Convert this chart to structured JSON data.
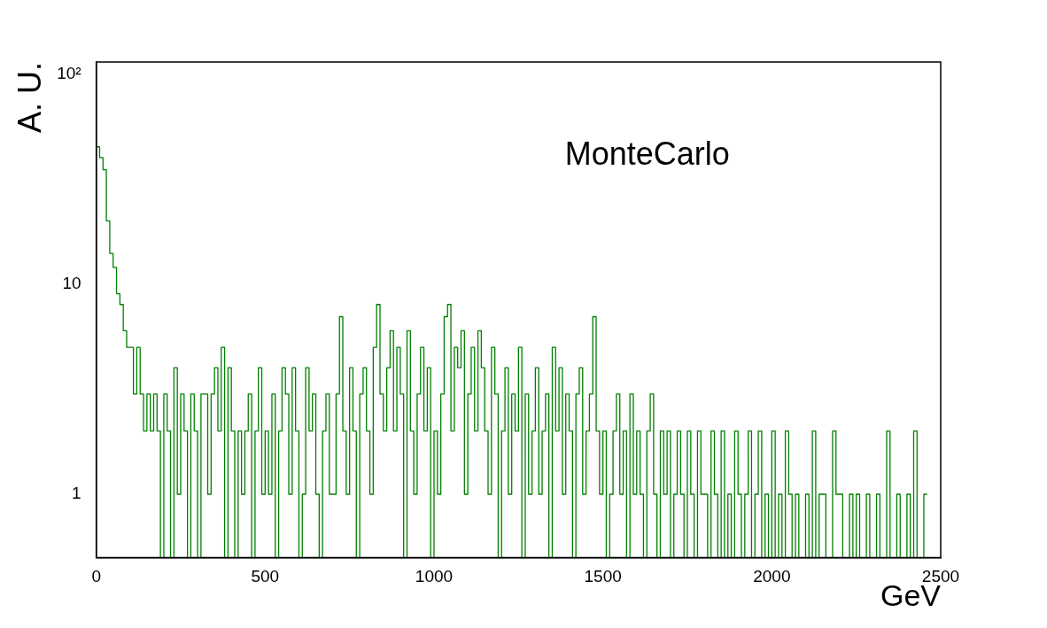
{
  "chart_data": {
    "type": "histogram",
    "xlabel": "GeV",
    "ylabel": "A. U.",
    "annotations": [
      "MonteCarlo"
    ],
    "color": "#007f00",
    "log": true,
    "grid": false,
    "legend": false,
    "xlim": [
      0,
      2500
    ],
    "xticks": [
      0,
      500,
      1000,
      1500,
      2000,
      2500
    ],
    "ylim": [
      0.5,
      114
    ],
    "yticks": [
      1,
      10,
      {
        "value": 100,
        "label": "10²"
      }
    ],
    "bins": [
      0,
      10,
      20,
      30,
      40,
      50,
      60,
      70,
      80,
      90,
      100,
      110,
      120,
      130,
      140,
      150,
      160,
      170,
      180,
      190,
      200,
      210,
      220,
      230,
      240,
      250,
      260,
      270,
      280,
      290,
      300,
      310,
      320,
      330,
      340,
      350,
      360,
      370,
      380,
      390,
      400,
      410,
      420,
      430,
      440,
      450,
      460,
      470,
      480,
      490,
      500,
      510,
      520,
      530,
      540,
      550,
      560,
      570,
      580,
      590,
      600,
      610,
      620,
      630,
      640,
      650,
      660,
      670,
      680,
      690,
      700,
      710,
      720,
      730,
      740,
      750,
      760,
      770,
      780,
      790,
      800,
      810,
      820,
      830,
      840,
      850,
      860,
      870,
      880,
      890,
      900,
      910,
      920,
      930,
      940,
      950,
      960,
      970,
      980,
      990,
      1000,
      1010,
      1020,
      1030,
      1040,
      1050,
      1060,
      1070,
      1080,
      1090,
      1100,
      1110,
      1120,
      1130,
      1140,
      1150,
      1160,
      1170,
      1180,
      1190,
      1200,
      1210,
      1220,
      1230,
      1240,
      1250,
      1260,
      1270,
      1280,
      1290,
      1300,
      1310,
      1320,
      1330,
      1340,
      1350,
      1360,
      1370,
      1380,
      1390,
      1400,
      1410,
      1420,
      1430,
      1440,
      1450,
      1460,
      1470,
      1480,
      1490,
      1500,
      1510,
      1520,
      1530,
      1540,
      1550,
      1560,
      1570,
      1580,
      1590,
      1600,
      1610,
      1620,
      1630,
      1640,
      1650,
      1660,
      1670,
      1680,
      1690,
      1700,
      1710,
      1720,
      1730,
      1740,
      1750,
      1760,
      1770,
      1780,
      1790,
      1800,
      1810,
      1820,
      1830,
      1840,
      1850,
      1860,
      1870,
      1880,
      1890,
      1900,
      1910,
      1920,
      1930,
      1940,
      1950,
      1960,
      1970,
      1980,
      1990,
      2000,
      2010,
      2020,
      2030,
      2040,
      2050,
      2060,
      2070,
      2080,
      2090,
      2100,
      2110,
      2120,
      2130,
      2140,
      2150,
      2160,
      2170,
      2180,
      2190,
      2200,
      2210,
      2220,
      2230,
      2240,
      2250,
      2260,
      2270,
      2280,
      2290,
      2300,
      2310,
      2320,
      2330,
      2340,
      2350,
      2360,
      2370,
      2380,
      2390,
      2400,
      2410,
      2420,
      2430,
      2440,
      2450,
      2460
    ],
    "values": [
      45,
      40,
      35,
      20,
      14,
      12,
      9,
      8,
      6,
      5,
      5,
      3,
      5,
      3,
      2,
      3,
      2,
      3,
      2,
      null,
      3,
      2,
      null,
      4,
      1,
      3,
      2,
      null,
      3,
      2,
      null,
      3,
      3,
      1,
      3,
      4,
      2,
      5,
      null,
      4,
      2,
      null,
      2,
      1,
      2,
      3,
      null,
      2,
      4,
      1,
      2,
      1,
      3,
      null,
      2,
      4,
      3,
      1,
      4,
      2,
      null,
      1,
      4,
      2,
      3,
      1,
      null,
      2,
      3,
      1,
      1,
      3,
      7,
      2,
      1,
      4,
      2,
      null,
      3,
      4,
      2,
      1,
      5,
      8,
      3,
      2,
      4,
      6,
      2,
      5,
      3,
      null,
      6,
      2,
      1,
      3,
      5,
      2,
      4,
      null,
      2,
      1,
      3,
      7,
      8,
      2,
      5,
      4,
      6,
      1,
      3,
      5,
      2,
      6,
      4,
      2,
      1,
      5,
      3,
      null,
      2,
      4,
      1,
      3,
      2,
      5,
      null,
      3,
      1,
      2,
      4,
      1,
      2,
      3,
      null,
      5,
      2,
      4,
      1,
      3,
      2,
      null,
      3,
      4,
      1,
      2,
      3,
      7,
      2,
      1,
      2,
      null,
      1,
      2,
      3,
      1,
      2,
      null,
      3,
      1,
      2,
      1,
      null,
      2,
      3,
      1,
      null,
      2,
      1,
      2,
      null,
      1,
      2,
      1,
      null,
      2,
      1,
      null,
      2,
      1,
      1,
      null,
      2,
      1,
      null,
      2,
      null,
      1,
      null,
      2,
      1,
      null,
      1,
      2,
      null,
      1,
      2,
      null,
      1,
      null,
      2,
      null,
      1,
      null,
      2,
      1,
      null,
      1,
      null,
      null,
      1,
      null,
      2,
      null,
      1,
      1,
      null,
      null,
      2,
      1,
      1,
      null,
      null,
      1,
      null,
      1,
      null,
      null,
      1,
      null,
      null,
      1,
      null,
      null,
      2,
      null,
      null,
      1,
      null,
      null,
      1,
      null,
      2,
      null,
      null,
      1
    ]
  }
}
